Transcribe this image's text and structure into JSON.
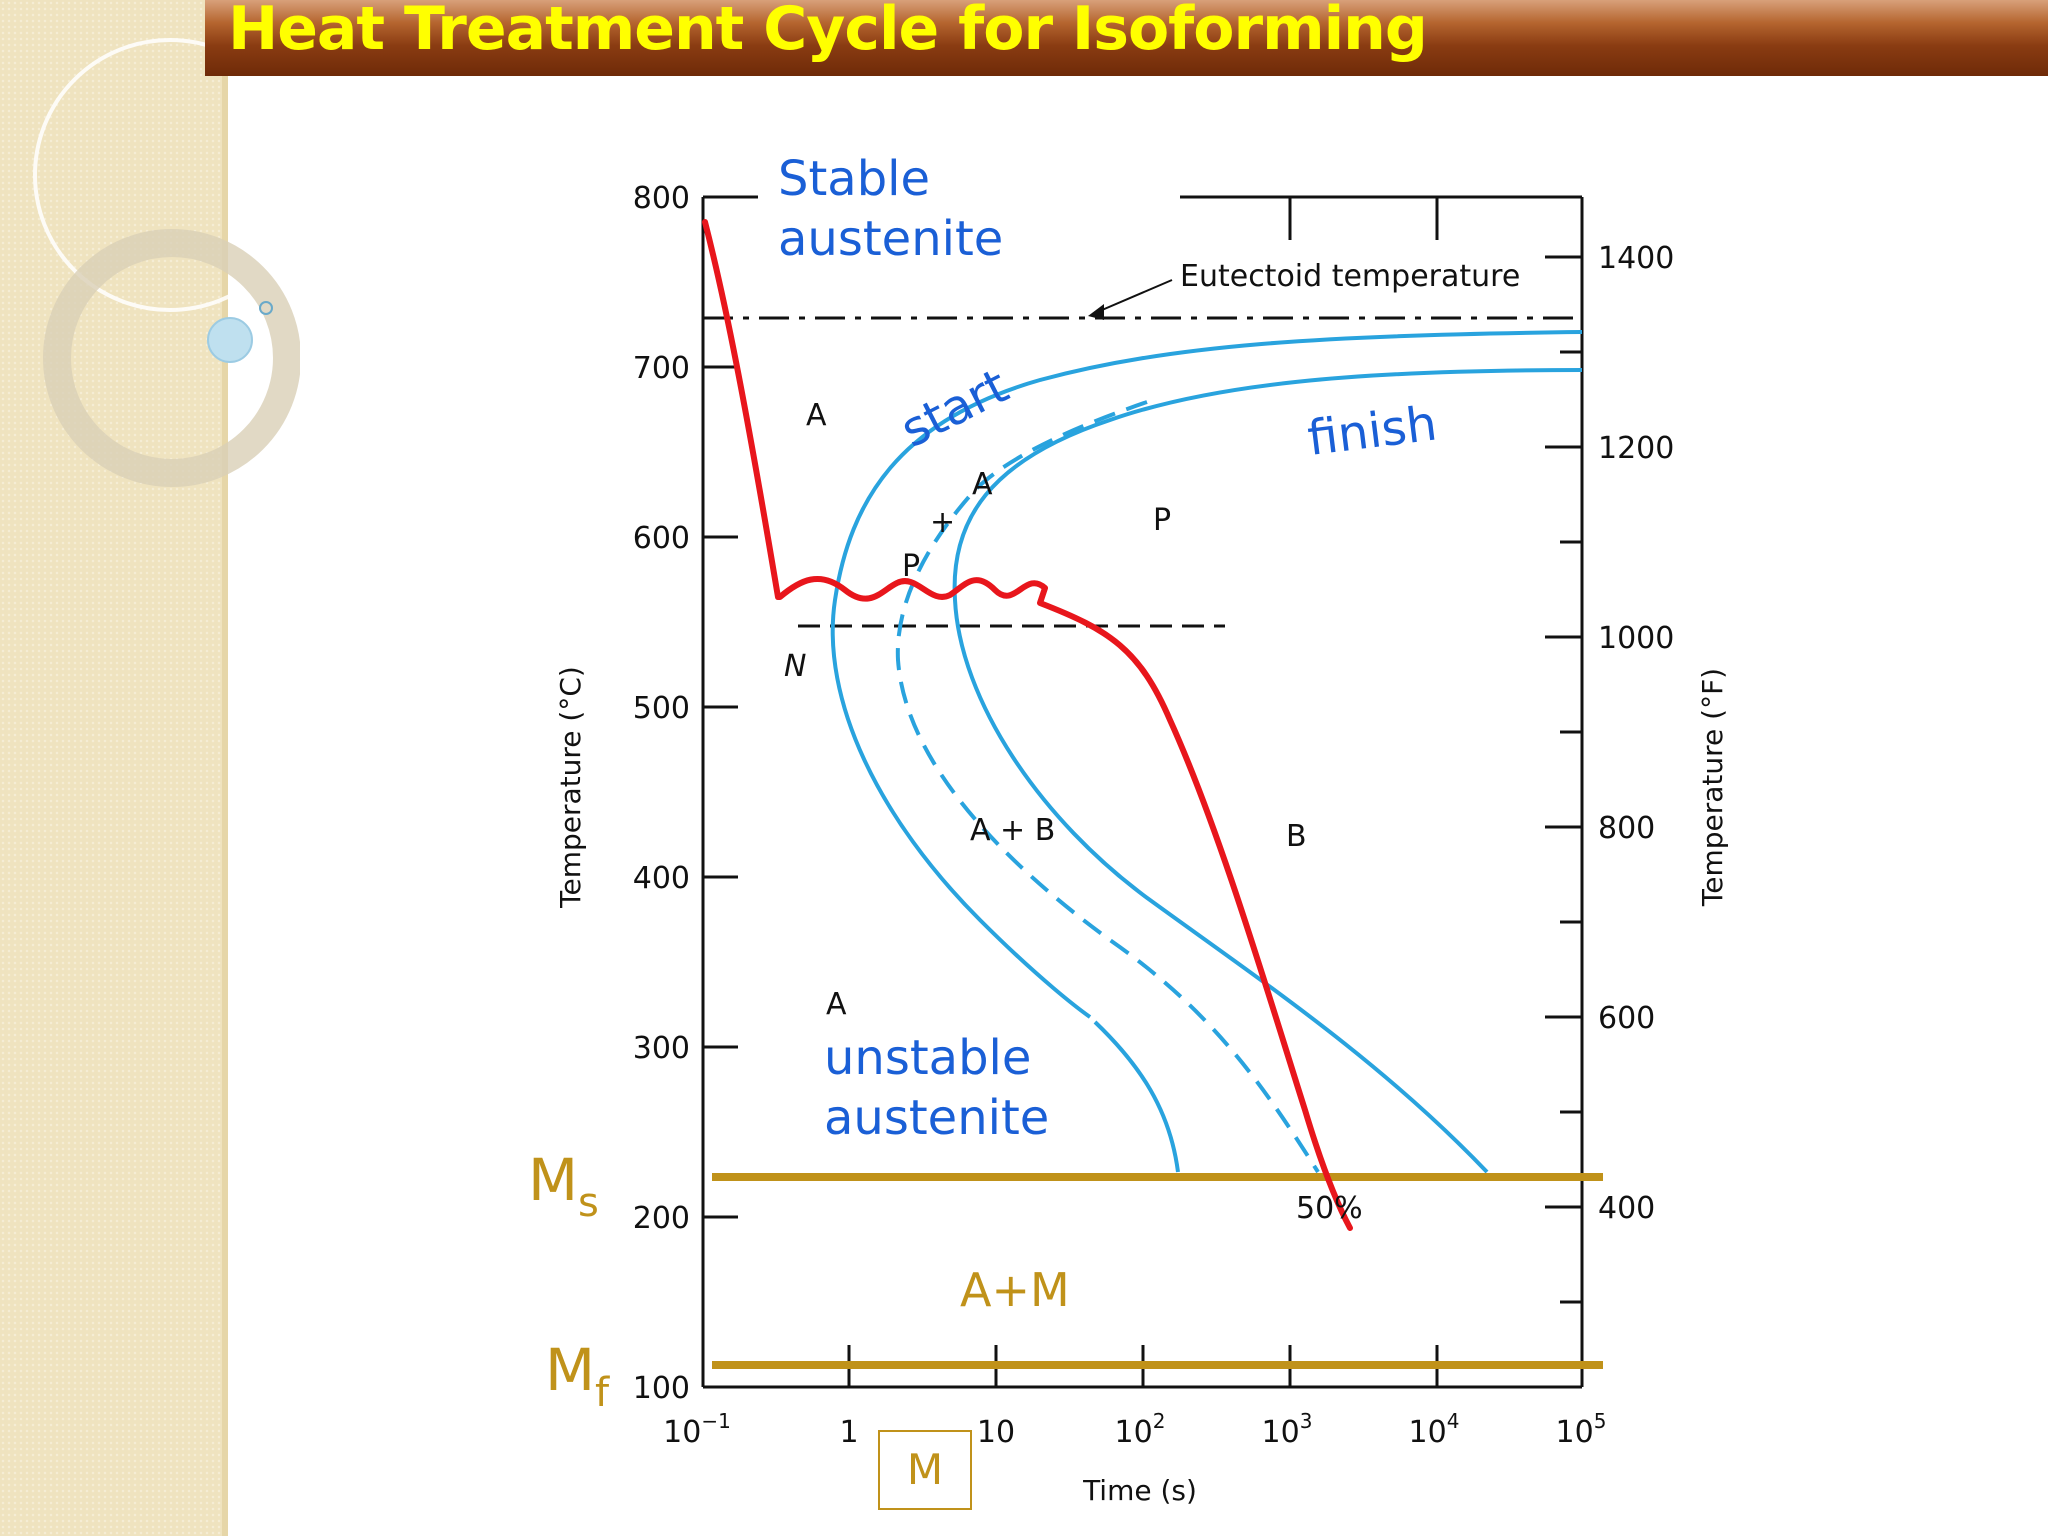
{
  "slide": {
    "title": "Heat Treatment Cycle for Isoforming"
  },
  "diagram": {
    "left_axis": {
      "label": "Temperature (°C)",
      "ticks": [
        "800",
        "700",
        "600",
        "500",
        "400",
        "300",
        "200",
        "100"
      ]
    },
    "right_axis": {
      "label": "Temperature (°F)",
      "ticks": [
        "1400",
        "1200",
        "1000",
        "800",
        "600",
        "400"
      ]
    },
    "x_axis": {
      "label": "Time (s)",
      "ticks": [
        {
          "base": "10",
          "exp": "−1"
        },
        {
          "base": "1",
          "exp": ""
        },
        {
          "base": "10",
          "exp": ""
        },
        {
          "base": "10",
          "exp": "2"
        },
        {
          "base": "10",
          "exp": "3"
        },
        {
          "base": "10",
          "exp": "4"
        },
        {
          "base": "10",
          "exp": "5"
        }
      ]
    },
    "eutectoid_label": "Eutectoid temperature",
    "annotations": {
      "stable_1": "Stable",
      "stable_2": "austenite",
      "start": "start",
      "finish": "finish",
      "unstable_1": "unstable",
      "unstable_2": "austenite",
      "a_plus_m": "A+M",
      "m_box": "M",
      "ms_main": "M",
      "ms_sub": "s",
      "mf_main": "M",
      "mf_sub": "f"
    },
    "region_labels": {
      "a_top": "A",
      "p_right": "P",
      "a_small": "A",
      "plus": "+",
      "p_small": "P",
      "n": "N",
      "a_plus_b": "A + B",
      "b": "B",
      "a_bottom": "A",
      "fifty": "50%"
    },
    "colors": {
      "curve_blue": "#29a3de",
      "path_red": "#e8161c",
      "martensite_gold": "#c0921a",
      "annotation_blue": "#1a5fd6",
      "title_yellow": "#ffff00"
    }
  }
}
